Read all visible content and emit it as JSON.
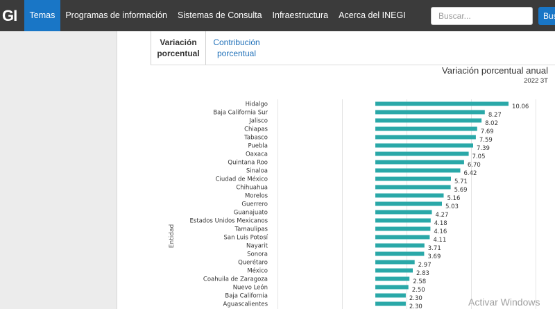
{
  "topbar": {
    "logo_text": "GI",
    "nav": [
      {
        "label": "Temas",
        "active": true
      },
      {
        "label": "Programas de información",
        "active": false
      },
      {
        "label": "Sistemas de Consulta",
        "active": false
      },
      {
        "label": "Infraestructura",
        "active": false
      },
      {
        "label": "Acerca del INEGI",
        "active": false
      }
    ],
    "search_placeholder": "Buscar...",
    "search_button": "Bus"
  },
  "tabs": {
    "active_line1": "Variación",
    "active_line2": "porcentual",
    "inactive_line1": "Contribución",
    "inactive_line2": "porcentual"
  },
  "chart_data": {
    "type": "bar",
    "orientation": "horizontal",
    "title": "Variación porcentual anual",
    "subtitle": "2022 3T",
    "ylabel": "Entidad",
    "bar_color": "#2aa8a8",
    "grid": true,
    "categories": [
      "Hidalgo",
      "Baja California Sur",
      "Jalisco",
      "Chiapas",
      "Tabasco",
      "Puebla",
      "Oaxaca",
      "Quintana Roo",
      "Sinaloa",
      "Ciudad de México",
      "Chihuahua",
      "Morelos",
      "Guerrero",
      "Guanajuato",
      "Estados Unidos Mexicanos",
      "Tamaulipas",
      "San Luis Potosí",
      "Nayarit",
      "Sonora",
      "Querétaro",
      "México",
      "Coahuila de Zaragoza",
      "Nuevo León",
      "Baja California",
      "Aguascalientes"
    ],
    "values": [
      10.06,
      8.27,
      8.02,
      7.69,
      7.59,
      7.39,
      7.05,
      6.7,
      6.42,
      5.71,
      5.69,
      5.16,
      5.03,
      4.27,
      4.18,
      4.16,
      4.11,
      3.71,
      3.69,
      2.97,
      2.83,
      2.58,
      2.5,
      2.3,
      2.3
    ],
    "value_labels": [
      "10.06",
      "8.27",
      "8.02",
      "7.69",
      "7.59",
      "7.39",
      "7.05",
      "6.70",
      "6.42",
      "5.71",
      "5.69",
      "5.16",
      "5.03",
      "4.27",
      "4.18",
      "4.16",
      "4.11",
      "3.71",
      "3.69",
      "2.97",
      "2.83",
      "2.58",
      "2.50",
      "2.30",
      "2.30"
    ]
  },
  "watermark": "Activar Windows"
}
